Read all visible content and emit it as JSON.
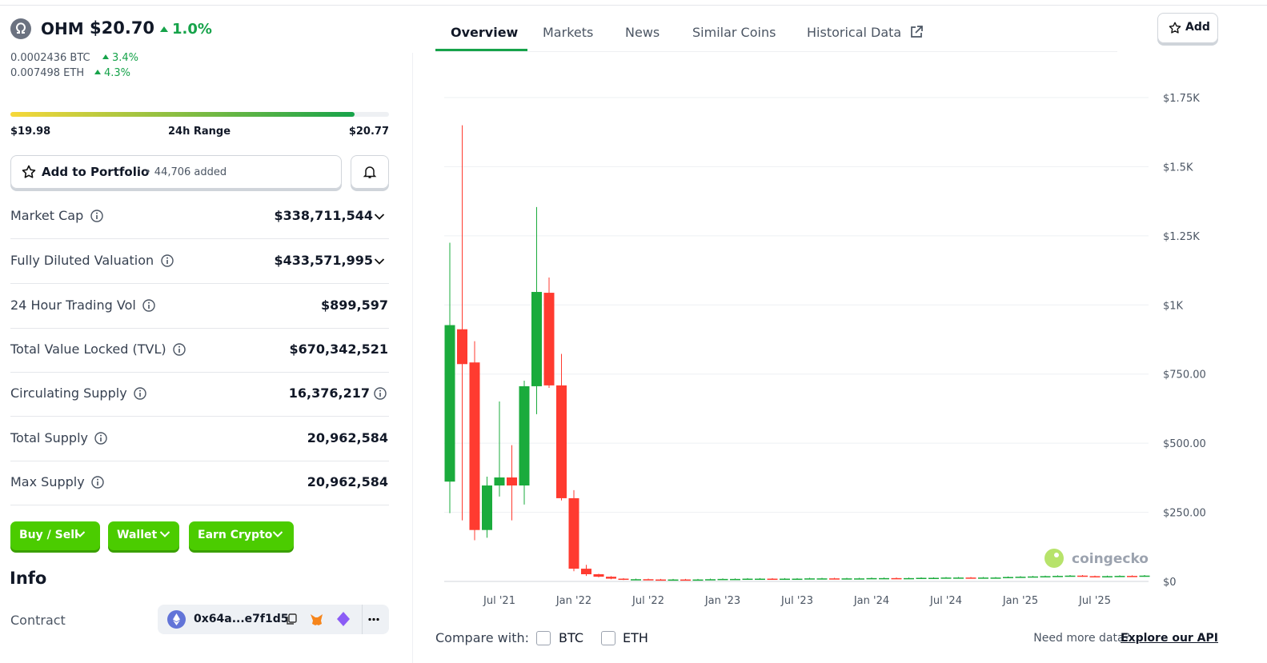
{
  "header": {
    "symbol": "OHM",
    "price": "$20.70",
    "change": "1.0%",
    "btc_price": "0.0002436 BTC",
    "btc_change": "3.4%",
    "eth_price": "0.007498 ETH",
    "eth_change": "4.3%"
  },
  "range": {
    "low": "$19.98",
    "label": "24h Range",
    "high": "$20.77"
  },
  "portfolio": {
    "button": "Add to Portfolio",
    "count": "• 44,706 added"
  },
  "stats": [
    {
      "label": "Market Cap",
      "value": "$338,711,544"
    },
    {
      "label": "Fully Diluted Valuation",
      "value": "$433,571,995"
    },
    {
      "label": "24 Hour Trading Vol",
      "value": "$899,597"
    },
    {
      "label": "Total Value Locked (TVL)",
      "value": "$670,342,521"
    },
    {
      "label": "Circulating Supply",
      "value": "16,376,217"
    },
    {
      "label": "Total Supply",
      "value": "20,962,584"
    },
    {
      "label": "Max Supply",
      "value": "20,962,584"
    }
  ],
  "buttons": [
    "Buy / Sell",
    "Wallet",
    "Earn Crypto"
  ],
  "info": {
    "title": "Info",
    "contract_label": "Contract",
    "contract": "0x64a...e7f1d5"
  },
  "tabs": [
    "Overview",
    "Markets",
    "News",
    "Similar Coins",
    "Historical Data"
  ],
  "add_button": "Add",
  "compare": {
    "label": "Compare with:",
    "options": [
      "BTC",
      "ETH"
    ]
  },
  "api": {
    "text": "Need more data?",
    "link": "Explore our API"
  },
  "chart_data": {
    "type": "candlestick",
    "watermark": "coingecko",
    "up_color": "#1aab3c",
    "down_color": "#ff3b30",
    "grid": true,
    "categories": [
      null,
      null,
      null,
      null,
      "Jul '21",
      null,
      null,
      null,
      null,
      null,
      "Jan '22",
      null,
      null,
      null,
      null,
      null,
      "Jul '22",
      null,
      null,
      null,
      null,
      null,
      "Jan '23",
      null,
      null,
      null,
      null,
      null,
      "Jul '23",
      null,
      null,
      null,
      null,
      null,
      "Jan '24",
      null,
      null,
      null,
      null,
      null,
      "Jul '24",
      null,
      null,
      null,
      null,
      null,
      "Jan '25",
      null,
      null,
      null,
      null,
      null,
      "Jul '25",
      null,
      null,
      null,
      null
    ],
    "open": [
      361,
      912,
      792,
      186,
      347,
      376,
      347,
      706,
      1044,
      709,
      301,
      46,
      26,
      17,
      10,
      7,
      8,
      7,
      6,
      7,
      6,
      7,
      8,
      9,
      9,
      10,
      10,
      9,
      10,
      10,
      11,
      11,
      10,
      11,
      11,
      12,
      12,
      11,
      12,
      13,
      13,
      14,
      14,
      13,
      14,
      14,
      16,
      17,
      18,
      19,
      20,
      21,
      19,
      18,
      19,
      20,
      19
    ],
    "high": [
      1225,
      1650,
      869,
      379,
      651,
      493,
      726,
      1354,
      1099,
      823,
      330,
      60,
      28,
      19,
      12,
      10,
      10,
      9,
      9,
      9,
      9,
      10,
      11,
      11,
      12,
      12,
      12,
      12,
      12,
      13,
      13,
      13,
      13,
      13,
      14,
      14,
      14,
      14,
      15,
      15,
      16,
      16,
      16,
      16,
      16,
      18,
      19,
      20,
      21,
      22,
      23,
      23,
      21,
      21,
      22,
      22,
      23
    ],
    "low": [
      247,
      221,
      149,
      158,
      307,
      221,
      278,
      605,
      700,
      293,
      37,
      20,
      15,
      8,
      5,
      5,
      5,
      4,
      4,
      4,
      4,
      5,
      6,
      7,
      7,
      8,
      7,
      7,
      8,
      8,
      9,
      8,
      8,
      9,
      9,
      10,
      9,
      9,
      10,
      11,
      11,
      12,
      11,
      11,
      12,
      12,
      14,
      15,
      16,
      17,
      18,
      17,
      16,
      16,
      17,
      17,
      17
    ],
    "close": [
      927,
      786,
      186,
      347,
      376,
      347,
      706,
      1047,
      709,
      301,
      46,
      26,
      17,
      10,
      7,
      8,
      7,
      6,
      7,
      6,
      7,
      8,
      9,
      9,
      10,
      10,
      9,
      10,
      10,
      11,
      11,
      10,
      11,
      11,
      12,
      12,
      11,
      12,
      13,
      13,
      14,
      14,
      13,
      14,
      14,
      16,
      17,
      18,
      19,
      20,
      21,
      19,
      18,
      19,
      20,
      19,
      21
    ],
    "ylim": [
      0,
      1750
    ],
    "yticks": [
      {
        "value": 0,
        "label": "$0"
      },
      {
        "value": 250,
        "label": "$250.00"
      },
      {
        "value": 500,
        "label": "$500.00"
      },
      {
        "value": 750,
        "label": "$750.00"
      },
      {
        "value": 1000,
        "label": "$1K"
      },
      {
        "value": 1250,
        "label": "$1.25K"
      },
      {
        "value": 1500,
        "label": "$1.5K"
      },
      {
        "value": 1750,
        "label": "$1.75K"
      }
    ]
  }
}
